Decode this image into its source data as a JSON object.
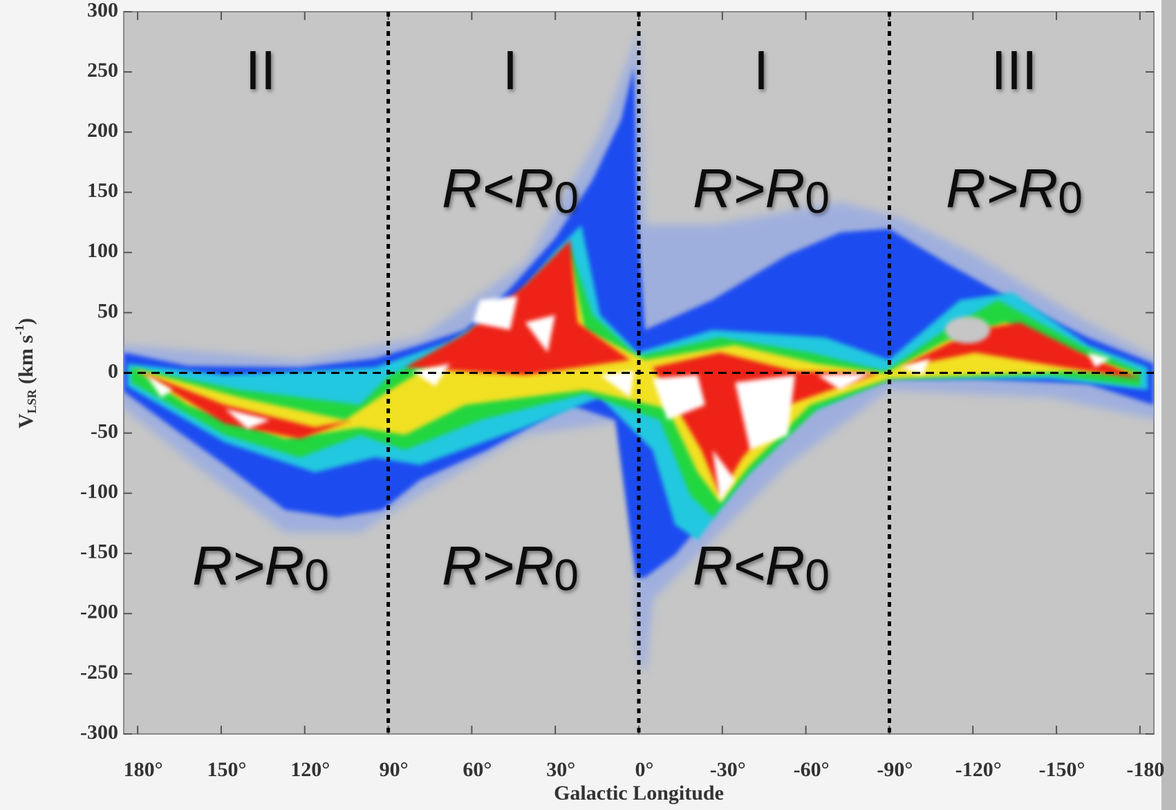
{
  "chart_data": {
    "type": "lv-diagram",
    "xlabel": "Galactic Longitude",
    "ylabel": {
      "main": "V",
      "sub": "LSR",
      "unit": " (km s",
      "sup": "-1",
      "close": ")"
    },
    "xlim": [
      185,
      -185
    ],
    "ylim": [
      -300,
      300
    ],
    "xticks": [
      {
        "value": 180,
        "label": "180°"
      },
      {
        "value": 150,
        "label": "150°"
      },
      {
        "value": 120,
        "label": "120°"
      },
      {
        "value": 90,
        "label": "90°"
      },
      {
        "value": 60,
        "label": "60°"
      },
      {
        "value": 30,
        "label": "30°"
      },
      {
        "value": 0,
        "label": "0°"
      },
      {
        "value": -30,
        "label": "-30°"
      },
      {
        "value": -60,
        "label": "-60°"
      },
      {
        "value": -90,
        "label": "-90°"
      },
      {
        "value": -120,
        "label": "-120°"
      },
      {
        "value": -150,
        "label": "-150°"
      },
      {
        "value": -180,
        "label": "-180"
      }
    ],
    "yticks": [
      -300,
      -250,
      -200,
      -150,
      -100,
      -50,
      0,
      50,
      100,
      150,
      200,
      250,
      300
    ],
    "reference_lines": {
      "x": [
        90,
        0,
        -90
      ],
      "y": [
        0
      ]
    },
    "annotations": [
      {
        "text": "II"
      },
      {
        "text": "I"
      },
      {
        "text": "I"
      },
      {
        "text": "III"
      },
      {
        "text": "R<R",
        "sub": "0"
      },
      {
        "text": "R>R",
        "sub": "0"
      },
      {
        "text": "R>R",
        "sub": "0"
      },
      {
        "text": "R>R",
        "sub": "0"
      },
      {
        "text": "R>R",
        "sub": "0"
      },
      {
        "text": "R<R",
        "sub": "0"
      }
    ]
  }
}
